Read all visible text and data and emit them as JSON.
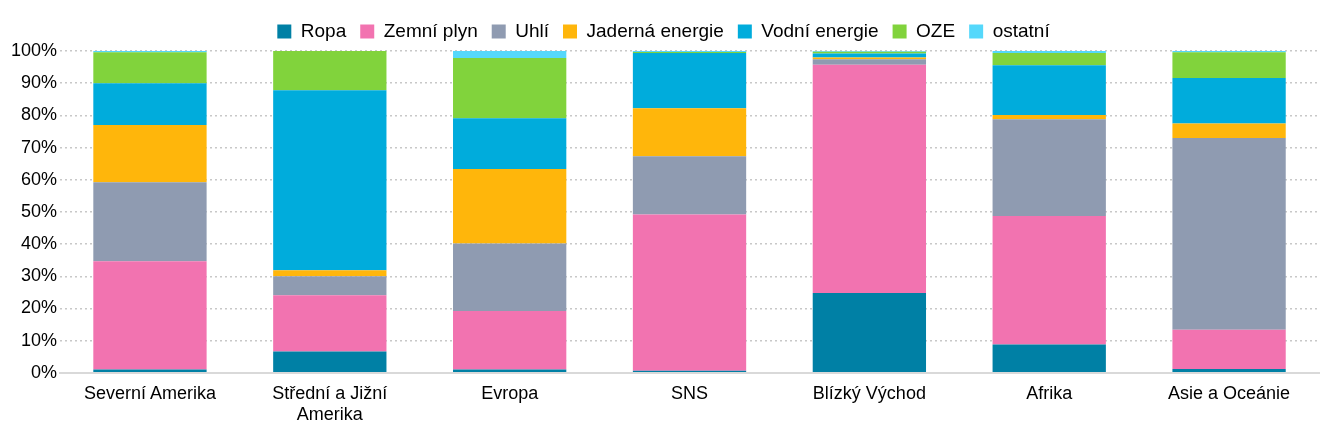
{
  "chart_data": {
    "type": "bar",
    "stacked": true,
    "categories": [
      "Severní Amerika",
      "Střední a Jižní Amerika",
      "Evropa",
      "SNS",
      "Blízký Východ",
      "Afrika",
      "Asie a Oceánie"
    ],
    "series": [
      {
        "name": "Ropa",
        "color": "#0080a5",
        "values": [
          1.0,
          6.6,
          1.0,
          0.6,
          24.8,
          8.8,
          1.2
        ]
      },
      {
        "name": "Zemní plyn",
        "color": "#f273b0",
        "values": [
          33.7,
          17.5,
          18.2,
          48.6,
          70.9,
          39.9,
          12.2
        ]
      },
      {
        "name": "Uhlí",
        "color": "#8f9bb1",
        "values": [
          24.5,
          5.9,
          21.0,
          18.1,
          1.7,
          30.1,
          59.6
        ]
      },
      {
        "name": "Jaderná energie",
        "color": "#ffb60b",
        "values": [
          17.8,
          1.9,
          23.1,
          14.9,
          0.6,
          1.3,
          4.5
        ]
      },
      {
        "name": "Vodní energie",
        "color": "#00acdc",
        "values": [
          13.0,
          55.9,
          15.8,
          17.2,
          1.2,
          15.5,
          14.1
        ]
      },
      {
        "name": "OZE",
        "color": "#81d33c",
        "values": [
          9.6,
          12.2,
          18.7,
          0.3,
          0.6,
          3.8,
          8.0
        ]
      },
      {
        "name": "ostatní",
        "color": "#55d8fb",
        "values": [
          0.4,
          0.0,
          2.2,
          0.3,
          0.2,
          0.6,
          0.4
        ]
      }
    ],
    "ylim": [
      0,
      100
    ],
    "yticks": [
      {
        "value": 0,
        "label": "0%"
      },
      {
        "value": 10,
        "label": "10%"
      },
      {
        "value": 20,
        "label": "20%"
      },
      {
        "value": 30,
        "label": "30%"
      },
      {
        "value": 40,
        "label": "40%"
      },
      {
        "value": 50,
        "label": "50%"
      },
      {
        "value": 60,
        "label": "60%"
      },
      {
        "value": 70,
        "label": "70%"
      },
      {
        "value": 80,
        "label": "80%"
      },
      {
        "value": 90,
        "label": "90%"
      },
      {
        "value": 100,
        "label": "100%"
      }
    ],
    "grid": "y",
    "legend": "top"
  }
}
